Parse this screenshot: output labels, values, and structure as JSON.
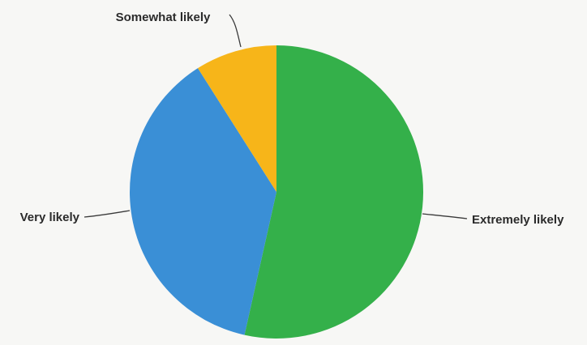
{
  "chart_data": {
    "type": "pie",
    "slices": [
      {
        "label": "Extremely likely",
        "value": 53.5,
        "color": "#34b04a"
      },
      {
        "label": "Very likely",
        "value": 37.5,
        "color": "#3a8fd6"
      },
      {
        "label": "Somewhat likely",
        "value": 9.0,
        "color": "#f7b519"
      }
    ],
    "start_angle_deg": 0,
    "direction": "clockwise",
    "legend": "none",
    "data_labels": "outside-with-leader-lines"
  }
}
